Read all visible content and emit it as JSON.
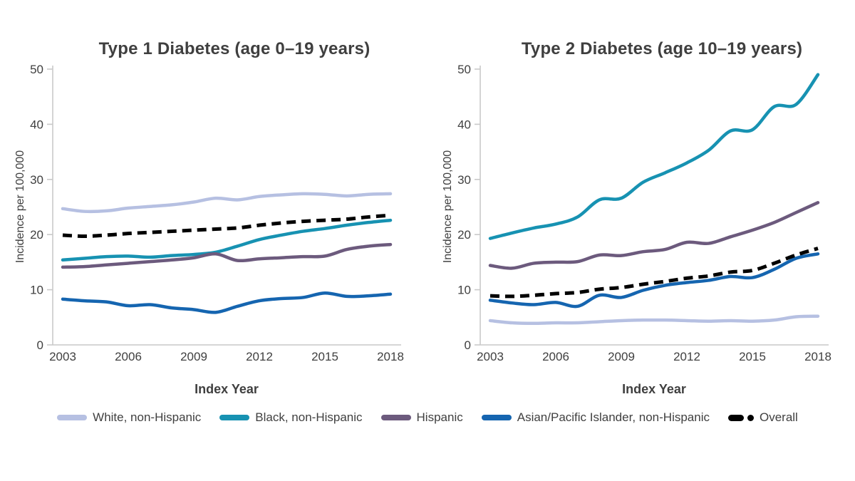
{
  "page": {
    "background": "#ffffff"
  },
  "styles": {
    "title_color": "#3f3f3f",
    "axis_text_color": "#404040",
    "axis_line_color": "#c9c9c9",
    "overall_color": "#000000"
  },
  "chart_data": [
    {
      "type": "line",
      "title": "Type 1 Diabetes (age 0–19 years)",
      "xlabel": "Index Year",
      "ylabel": "Incidence per 100,000",
      "xlim": [
        2003,
        2018
      ],
      "ylim": [
        0,
        50
      ],
      "xticks": [
        2003,
        2006,
        2009,
        2012,
        2015,
        2018
      ],
      "yticks": [
        0,
        10,
        20,
        30,
        40,
        50
      ],
      "grid": false,
      "x": [
        2003,
        2004,
        2005,
        2006,
        2007,
        2008,
        2009,
        2010,
        2011,
        2012,
        2013,
        2014,
        2015,
        2016,
        2017,
        2018
      ],
      "series": [
        {
          "key": "white-non-hispanic",
          "name": "White, non-Hispanic",
          "color": "#b6c0e2",
          "style": "solid",
          "values": [
            24.7,
            24.2,
            24.3,
            24.8,
            25.1,
            25.4,
            25.9,
            26.6,
            26.3,
            26.9,
            27.2,
            27.4,
            27.3,
            27.0,
            27.3,
            27.4
          ]
        },
        {
          "key": "black-non-hispanic",
          "name": "Black, non-Hispanic",
          "color": "#1792b2",
          "style": "solid",
          "values": [
            15.4,
            15.7,
            16.0,
            16.1,
            15.9,
            16.2,
            16.4,
            16.8,
            17.9,
            19.1,
            19.9,
            20.6,
            21.1,
            21.7,
            22.2,
            22.6
          ]
        },
        {
          "key": "hispanic",
          "name": "Hispanic",
          "color": "#6c5a7d",
          "style": "solid",
          "values": [
            14.1,
            14.2,
            14.5,
            14.8,
            15.1,
            15.4,
            15.8,
            16.5,
            15.3,
            15.6,
            15.8,
            16.0,
            16.1,
            17.3,
            17.9,
            18.2
          ]
        },
        {
          "key": "asian-pacific-islander-non-hispanic",
          "name": "Asian/Pacific Islander, non-Hispanic",
          "color": "#1565b0",
          "style": "solid",
          "values": [
            8.3,
            8.0,
            7.8,
            7.1,
            7.3,
            6.7,
            6.4,
            5.9,
            7.0,
            8.0,
            8.4,
            8.6,
            9.4,
            8.8,
            8.9,
            9.2
          ]
        },
        {
          "key": "overall",
          "name": "Overall",
          "color": "#000000",
          "style": "dashed",
          "values": [
            19.9,
            19.7,
            19.9,
            20.2,
            20.4,
            20.6,
            20.8,
            21.0,
            21.2,
            21.7,
            22.1,
            22.4,
            22.6,
            22.8,
            23.2,
            23.5
          ]
        }
      ]
    },
    {
      "type": "line",
      "title": "Type 2 Diabetes (age 10–19 years)",
      "xlabel": "Index Year",
      "ylabel": "Incidence per 100,000",
      "xlim": [
        2003,
        2018
      ],
      "ylim": [
        0,
        50
      ],
      "xticks": [
        2003,
        2006,
        2009,
        2012,
        2015,
        2018
      ],
      "yticks": [
        0,
        10,
        20,
        30,
        40,
        50
      ],
      "grid": false,
      "x": [
        2003,
        2004,
        2005,
        2006,
        2007,
        2008,
        2009,
        2010,
        2011,
        2012,
        2013,
        2014,
        2015,
        2016,
        2017,
        2018
      ],
      "series": [
        {
          "key": "white-non-hispanic",
          "name": "White, non-Hispanic",
          "color": "#b6c0e2",
          "style": "solid",
          "values": [
            4.4,
            4.0,
            3.9,
            4.0,
            4.0,
            4.2,
            4.4,
            4.5,
            4.5,
            4.4,
            4.3,
            4.4,
            4.3,
            4.5,
            5.1,
            5.2
          ]
        },
        {
          "key": "black-non-hispanic",
          "name": "Black, non-Hispanic",
          "color": "#1792b2",
          "style": "solid",
          "values": [
            19.3,
            20.3,
            21.2,
            21.9,
            23.2,
            26.3,
            26.6,
            29.5,
            31.2,
            33.0,
            35.3,
            38.8,
            39.0,
            43.2,
            43.6,
            49.0
          ]
        },
        {
          "key": "hispanic",
          "name": "Hispanic",
          "color": "#6c5a7d",
          "style": "solid",
          "values": [
            14.4,
            13.9,
            14.8,
            15.0,
            15.1,
            16.3,
            16.2,
            16.9,
            17.3,
            18.6,
            18.4,
            19.6,
            20.8,
            22.2,
            24.0,
            25.8
          ]
        },
        {
          "key": "asian-pacific-islander-non-hispanic",
          "name": "Asian/Pacific Islander, non-Hispanic",
          "color": "#1565b0",
          "style": "solid",
          "values": [
            8.1,
            7.6,
            7.3,
            7.7,
            7.0,
            9.0,
            8.6,
            9.9,
            10.8,
            11.3,
            11.7,
            12.4,
            12.2,
            13.7,
            15.7,
            16.5
          ]
        },
        {
          "key": "overall",
          "name": "Overall",
          "color": "#000000",
          "style": "dashed",
          "values": [
            8.9,
            8.8,
            9.0,
            9.3,
            9.5,
            10.1,
            10.4,
            11.0,
            11.5,
            12.1,
            12.5,
            13.2,
            13.5,
            14.8,
            16.3,
            17.5
          ]
        }
      ]
    }
  ]
}
